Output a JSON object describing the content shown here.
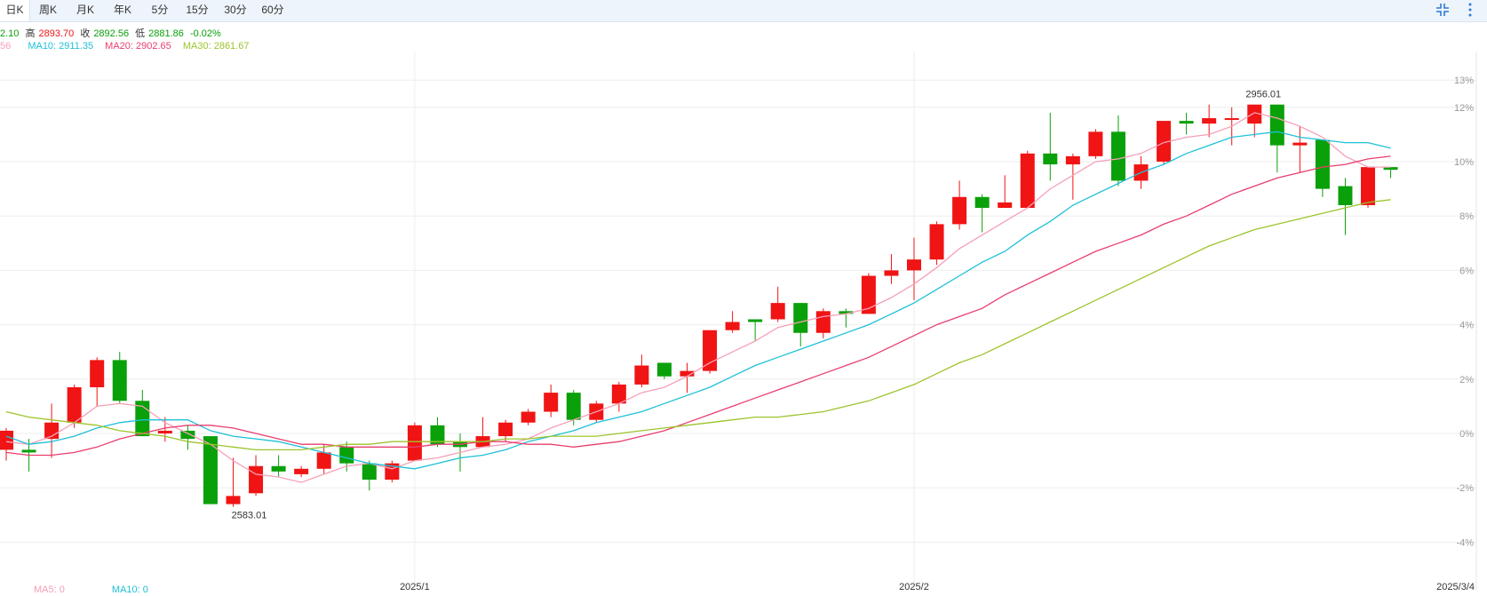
{
  "tabs": [
    {
      "label": "日K",
      "active": true
    },
    {
      "label": "周K"
    },
    {
      "label": "月K"
    },
    {
      "label": "年K"
    },
    {
      "label": "5分"
    },
    {
      "label": "15分"
    },
    {
      "label": "30分"
    },
    {
      "label": "60分"
    }
  ],
  "toolbar": {
    "fullscreen_icon": "shrink-icon",
    "more_icon": "more-vertical-icon"
  },
  "info_line1": {
    "open_value": "2.10",
    "high_label": "高",
    "high_value": "2893.70",
    "close_label": "收",
    "close_value": "2892.56",
    "low_label": "低",
    "low_value": "2881.86",
    "change": "-0.02%"
  },
  "info_line2": {
    "ma5_value": "56",
    "ma10": "MA10: 2911.35",
    "ma20": "MA20: 2902.65",
    "ma30": "MA30: 2861.67"
  },
  "bottom_legend": {
    "ma5": "MA5: 0",
    "ma10": "MA10: 0"
  },
  "colors": {
    "up": "#f01414",
    "down": "#0aa00a",
    "ma5": "#f5a0b8",
    "ma10": "#1ec0d8",
    "ma20": "#e83e6e",
    "ma30": "#9cc42c",
    "grid": "#eeeeee",
    "axis_text": "#999999"
  },
  "chart_data": {
    "type": "candlestick",
    "y_unit": "%",
    "ylim": [
      -4,
      13
    ],
    "y_ticks": [
      13,
      12,
      10,
      8,
      6,
      4,
      2,
      0,
      -2,
      -4
    ],
    "y_tick_labels": [
      "13%",
      "12%",
      "10%",
      "8%",
      "6%",
      "4%",
      "2%",
      "0%",
      "-2%",
      "-4%"
    ],
    "x_tick_labels": [
      {
        "index": 18,
        "label": "2025/1"
      },
      {
        "index": 40,
        "label": "2025/2"
      },
      {
        "index": 61,
        "label": "2025/3/4"
      }
    ],
    "annotations": [
      {
        "index": 10,
        "value": -2.6,
        "label": "2583.01",
        "side": "below"
      },
      {
        "index": 55,
        "value": 12.1,
        "label": "2956.01",
        "side": "above"
      }
    ],
    "candles": [
      {
        "o": -0.6,
        "h": 0.2,
        "l": -1.0,
        "c": 0.1
      },
      {
        "o": -0.6,
        "h": -0.2,
        "l": -1.4,
        "c": -0.7
      },
      {
        "o": -0.2,
        "h": 1.1,
        "l": -0.9,
        "c": 0.4
      },
      {
        "o": 0.4,
        "h": 1.8,
        "l": 0.2,
        "c": 1.7
      },
      {
        "o": 1.7,
        "h": 2.8,
        "l": 1.0,
        "c": 2.7
      },
      {
        "o": 2.7,
        "h": 3.0,
        "l": 1.1,
        "c": 1.2
      },
      {
        "o": 1.2,
        "h": 1.6,
        "l": -0.1,
        "c": -0.1
      },
      {
        "o": 0.0,
        "h": 0.6,
        "l": -0.3,
        "c": 0.1
      },
      {
        "o": 0.1,
        "h": 0.3,
        "l": -0.6,
        "c": -0.2
      },
      {
        "o": -0.1,
        "h": -0.1,
        "l": -2.6,
        "c": -2.6
      },
      {
        "o": -2.6,
        "h": -0.9,
        "l": -2.7,
        "c": -2.3
      },
      {
        "o": -2.2,
        "h": -0.8,
        "l": -2.3,
        "c": -1.2
      },
      {
        "o": -1.2,
        "h": -0.8,
        "l": -1.6,
        "c": -1.4
      },
      {
        "o": -1.5,
        "h": -1.2,
        "l": -1.6,
        "c": -1.3
      },
      {
        "o": -1.3,
        "h": -0.4,
        "l": -1.5,
        "c": -0.7
      },
      {
        "o": -0.5,
        "h": -0.3,
        "l": -1.4,
        "c": -1.1
      },
      {
        "o": -1.1,
        "h": -1.0,
        "l": -2.1,
        "c": -1.7
      },
      {
        "o": -1.7,
        "h": -1.0,
        "l": -1.8,
        "c": -1.1
      },
      {
        "o": -1.0,
        "h": 0.4,
        "l": -1.0,
        "c": 0.3
      },
      {
        "o": 0.3,
        "h": 0.6,
        "l": -0.5,
        "c": -0.4
      },
      {
        "o": -0.3,
        "h": 0.0,
        "l": -1.4,
        "c": -0.5
      },
      {
        "o": -0.5,
        "h": 0.6,
        "l": -0.5,
        "c": -0.1
      },
      {
        "o": -0.1,
        "h": 0.5,
        "l": -0.3,
        "c": 0.4
      },
      {
        "o": 0.4,
        "h": 0.9,
        "l": 0.3,
        "c": 0.8
      },
      {
        "o": 0.8,
        "h": 1.8,
        "l": 0.6,
        "c": 1.5
      },
      {
        "o": 1.5,
        "h": 1.6,
        "l": 0.3,
        "c": 0.5
      },
      {
        "o": 0.5,
        "h": 1.2,
        "l": 0.4,
        "c": 1.1
      },
      {
        "o": 1.1,
        "h": 1.9,
        "l": 0.8,
        "c": 1.8
      },
      {
        "o": 1.8,
        "h": 2.9,
        "l": 1.7,
        "c": 2.5
      },
      {
        "o": 2.6,
        "h": 2.6,
        "l": 2.0,
        "c": 2.1
      },
      {
        "o": 2.1,
        "h": 2.6,
        "l": 1.5,
        "c": 2.3
      },
      {
        "o": 2.3,
        "h": 3.8,
        "l": 2.2,
        "c": 3.8
      },
      {
        "o": 3.8,
        "h": 4.5,
        "l": 3.7,
        "c": 4.1
      },
      {
        "o": 4.2,
        "h": 4.2,
        "l": 3.4,
        "c": 4.1
      },
      {
        "o": 4.2,
        "h": 5.4,
        "l": 4.1,
        "c": 4.8
      },
      {
        "o": 4.8,
        "h": 4.8,
        "l": 3.2,
        "c": 3.7
      },
      {
        "o": 3.7,
        "h": 4.6,
        "l": 3.5,
        "c": 4.5
      },
      {
        "o": 4.5,
        "h": 4.6,
        "l": 3.9,
        "c": 4.4
      },
      {
        "o": 4.4,
        "h": 5.9,
        "l": 4.4,
        "c": 5.8
      },
      {
        "o": 5.8,
        "h": 6.6,
        "l": 5.5,
        "c": 6.0
      },
      {
        "o": 6.0,
        "h": 7.2,
        "l": 4.9,
        "c": 6.4
      },
      {
        "o": 6.4,
        "h": 7.8,
        "l": 6.2,
        "c": 7.7
      },
      {
        "o": 7.7,
        "h": 9.3,
        "l": 7.5,
        "c": 8.7
      },
      {
        "o": 8.7,
        "h": 8.8,
        "l": 7.4,
        "c": 8.3
      },
      {
        "o": 8.3,
        "h": 9.5,
        "l": 8.3,
        "c": 8.5
      },
      {
        "o": 8.3,
        "h": 10.4,
        "l": 8.3,
        "c": 10.3
      },
      {
        "o": 10.3,
        "h": 11.8,
        "l": 9.3,
        "c": 9.9
      },
      {
        "o": 9.9,
        "h": 10.3,
        "l": 8.6,
        "c": 10.2
      },
      {
        "o": 10.2,
        "h": 11.2,
        "l": 10.1,
        "c": 11.1
      },
      {
        "o": 11.1,
        "h": 11.7,
        "l": 9.1,
        "c": 9.3
      },
      {
        "o": 9.3,
        "h": 10.2,
        "l": 9.0,
        "c": 9.9
      },
      {
        "o": 10.0,
        "h": 11.5,
        "l": 9.9,
        "c": 11.5
      },
      {
        "o": 11.5,
        "h": 11.8,
        "l": 11.0,
        "c": 11.4
      },
      {
        "o": 11.4,
        "h": 12.1,
        "l": 10.9,
        "c": 11.6
      },
      {
        "o": 11.6,
        "h": 12.0,
        "l": 10.6,
        "c": 11.6
      },
      {
        "o": 11.4,
        "h": 12.1,
        "l": 10.9,
        "c": 12.1
      },
      {
        "o": 12.1,
        "h": 12.1,
        "l": 9.6,
        "c": 10.6
      },
      {
        "o": 10.6,
        "h": 11.3,
        "l": 9.6,
        "c": 10.7
      },
      {
        "o": 10.8,
        "h": 10.8,
        "l": 8.7,
        "c": 9.0
      },
      {
        "o": 9.1,
        "h": 9.4,
        "l": 7.3,
        "c": 8.4
      },
      {
        "o": 8.4,
        "h": 9.8,
        "l": 8.3,
        "c": 9.8
      },
      {
        "o": 9.8,
        "h": 9.8,
        "l": 9.4,
        "c": 9.7
      }
    ],
    "series": [
      {
        "name": "MA5",
        "values": [
          -0.3,
          -0.4,
          -0.1,
          0.4,
          1.0,
          1.1,
          1.0,
          0.4,
          0.0,
          -0.4,
          -1.0,
          -1.5,
          -1.6,
          -1.8,
          -1.5,
          -1.2,
          -1.1,
          -1.3,
          -1.0,
          -0.9,
          -0.7,
          -0.5,
          -0.4,
          -0.2,
          0.2,
          0.5,
          0.8,
          1.1,
          1.5,
          1.7,
          2.1,
          2.6,
          3.0,
          3.4,
          3.9,
          4.1,
          4.3,
          4.4,
          4.6,
          5.0,
          5.5,
          6.1,
          6.8,
          7.3,
          7.8,
          8.3,
          9.0,
          9.5,
          10.0,
          10.1,
          10.3,
          10.7,
          10.9,
          11.0,
          11.3,
          11.8,
          11.6,
          11.3,
          10.9,
          10.2,
          9.8,
          9.8
        ]
      },
      {
        "name": "MA10",
        "values": [
          -0.1,
          -0.4,
          -0.3,
          -0.1,
          0.2,
          0.4,
          0.5,
          0.5,
          0.5,
          0.1,
          -0.1,
          -0.2,
          -0.3,
          -0.5,
          -0.7,
          -0.9,
          -1.1,
          -1.2,
          -1.3,
          -1.1,
          -0.9,
          -0.8,
          -0.6,
          -0.3,
          -0.1,
          0.1,
          0.4,
          0.6,
          0.8,
          1.1,
          1.4,
          1.7,
          2.1,
          2.5,
          2.8,
          3.1,
          3.4,
          3.7,
          4.0,
          4.4,
          4.8,
          5.3,
          5.8,
          6.3,
          6.7,
          7.3,
          7.8,
          8.4,
          8.8,
          9.2,
          9.6,
          9.9,
          10.3,
          10.6,
          10.9,
          11.0,
          11.1,
          10.9,
          10.8,
          10.7,
          10.7,
          10.5
        ]
      },
      {
        "name": "MA20",
        "values": [
          -0.7,
          -0.8,
          -0.8,
          -0.7,
          -0.5,
          -0.2,
          0.0,
          0.2,
          0.3,
          0.3,
          0.2,
          0.0,
          -0.2,
          -0.4,
          -0.4,
          -0.5,
          -0.5,
          -0.5,
          -0.5,
          -0.4,
          -0.4,
          -0.3,
          -0.3,
          -0.4,
          -0.4,
          -0.5,
          -0.4,
          -0.3,
          -0.1,
          0.1,
          0.4,
          0.7,
          1.0,
          1.3,
          1.6,
          1.9,
          2.2,
          2.5,
          2.8,
          3.2,
          3.6,
          4.0,
          4.3,
          4.6,
          5.1,
          5.5,
          5.9,
          6.3,
          6.7,
          7.0,
          7.3,
          7.7,
          8.0,
          8.4,
          8.8,
          9.1,
          9.4,
          9.6,
          9.8,
          9.9,
          10.1,
          10.2
        ]
      },
      {
        "name": "MA30",
        "values": [
          0.8,
          0.6,
          0.5,
          0.4,
          0.3,
          0.1,
          0.0,
          -0.1,
          -0.3,
          -0.4,
          -0.5,
          -0.6,
          -0.6,
          -0.6,
          -0.5,
          -0.4,
          -0.4,
          -0.3,
          -0.3,
          -0.3,
          -0.3,
          -0.3,
          -0.2,
          -0.2,
          -0.1,
          -0.1,
          -0.1,
          0.0,
          0.1,
          0.2,
          0.3,
          0.4,
          0.5,
          0.6,
          0.6,
          0.7,
          0.8,
          1.0,
          1.2,
          1.5,
          1.8,
          2.2,
          2.6,
          2.9,
          3.3,
          3.7,
          4.1,
          4.5,
          4.9,
          5.3,
          5.7,
          6.1,
          6.5,
          6.9,
          7.2,
          7.5,
          7.7,
          7.9,
          8.1,
          8.3,
          8.5,
          8.6
        ]
      }
    ]
  }
}
